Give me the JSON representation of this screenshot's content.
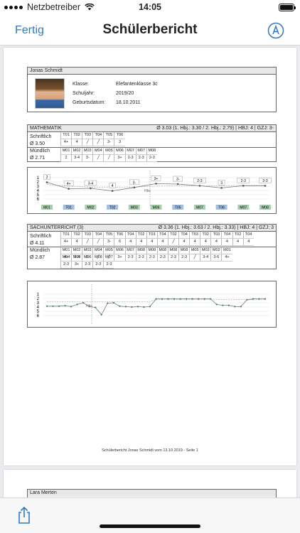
{
  "status_bar": {
    "carrier": "Netzbetreiber",
    "time": "14:05"
  },
  "nav": {
    "done_label": "Fertig",
    "title": "Schülerbericht",
    "markup_icon": "pen-circle-icon"
  },
  "student": {
    "name": "Jonas Schmidt",
    "fields": [
      {
        "label": "Klasse:",
        "value": "Elefantenklasse 3c"
      },
      {
        "label": "Schuljahr:",
        "value": "2019/20"
      },
      {
        "label": "Geburtsdatum:",
        "value": "18.10.2011"
      }
    ]
  },
  "subjects": [
    {
      "name": "MATHEMATIK",
      "summary": "Ø 3.03 (1. Hbj.: 3.30 / 2. Hbj.: 2.79) | HBJ: 4 | GZJ: 3-",
      "written": {
        "label": "Schriftlich",
        "avg": "Ø 3.50",
        "heads": [
          "T01",
          "T02",
          "T03",
          "T04",
          "T05",
          "T06"
        ],
        "grades": [
          "4+",
          "4",
          "/",
          "/",
          "3-",
          "3"
        ]
      },
      "oral": {
        "label": "Mündlich",
        "avg": "Ø 2.71",
        "heads": [
          "M01",
          "M02",
          "M03",
          "M04",
          "M05",
          "M06",
          "M07",
          "M07",
          "M08"
        ],
        "grades": [
          "2",
          "3-4",
          "3-",
          "/",
          "/",
          "3+",
          "2-3",
          "2-3",
          "2-3"
        ]
      },
      "chart": {
        "labels": [
          "2",
          "4+",
          "3-4",
          "4",
          "3-",
          "3+",
          "3-",
          "2-3",
          "3",
          "2-3",
          "2-3"
        ],
        "halfyear_marker": "Hbs",
        "axis_ticks": [
          "1",
          "2",
          "3",
          "4",
          "5",
          "6"
        ],
        "bottom_tags": [
          {
            "text": "M01",
            "kind": "oral"
          },
          {
            "text": "T01",
            "kind": "written"
          },
          {
            "text": "M02",
            "kind": "oral"
          },
          {
            "text": "T02",
            "kind": "written"
          },
          {
            "text": "M03",
            "kind": "oral"
          },
          {
            "text": "M06",
            "kind": "oral"
          },
          {
            "text": "T05",
            "kind": "written"
          },
          {
            "text": "M07",
            "kind": "oral"
          },
          {
            "text": "T06",
            "kind": "written"
          },
          {
            "text": "M07",
            "kind": "oral"
          },
          {
            "text": "M08",
            "kind": "oral"
          }
        ]
      }
    },
    {
      "name": "SACHUNTERRICHT (3)",
      "summary": "Ø 3.36 (1. Hbj.: 3.63 / 2. Hbj.: 3.33) | HBJ: 4 | GZJ: 3",
      "written": {
        "label": "Schriftlich",
        "avg": "Ø 4.11",
        "heads": [
          "T01",
          "T02",
          "T03",
          "T04",
          "T05",
          "T06",
          "T04",
          "T02",
          "T03",
          "T04",
          "T02",
          "T04",
          "T03",
          "T02",
          "T03",
          "T04",
          "T02",
          "T04"
        ],
        "grades": [
          "4+",
          "4",
          "/",
          "/",
          "3-",
          "6",
          "4",
          "4",
          "4",
          "4",
          "/",
          "4",
          "4",
          "4",
          "4",
          "4",
          "4",
          "4"
        ]
      },
      "oral": {
        "label": "Mündlich",
        "avg": "Ø 2.87",
        "heads": [
          "M01",
          "M02",
          "M03",
          "M04",
          "M05",
          "M06",
          "M07",
          "M08",
          "M08",
          "M08",
          "M08",
          "M08",
          "M05",
          "M03",
          "M02",
          "M01"
        ],
        "grades": [
          "4+",
          "3-4",
          "3-",
          "/",
          "/",
          "3+",
          "2-3",
          "2-3",
          "2-3",
          "2-3",
          "2-3",
          "2-3",
          "/",
          "3-4",
          "3-6",
          "4+"
        ],
        "heads2": [
          "M04",
          "M08",
          "M06",
          "M08",
          "M07"
        ],
        "grades2": [
          "2-3",
          "3+",
          "2-3",
          "2-3",
          "2-3"
        ]
      },
      "chart": {
        "halfyear_marker": "Hbs",
        "axis_ticks": [
          "1",
          "2",
          "3",
          "4",
          "5",
          "6"
        ]
      }
    }
  ],
  "footer": "Schülerbericht Jonas Schmidt vom 13.10.2019 - Seite 1",
  "next_student": {
    "name": "Lara Merten"
  },
  "toolbar": {
    "share_icon": "share-icon"
  },
  "colors": {
    "accent": "#2f78c4",
    "oral_tag": "#a9cfae",
    "written_tag": "#a6bfdc"
  }
}
